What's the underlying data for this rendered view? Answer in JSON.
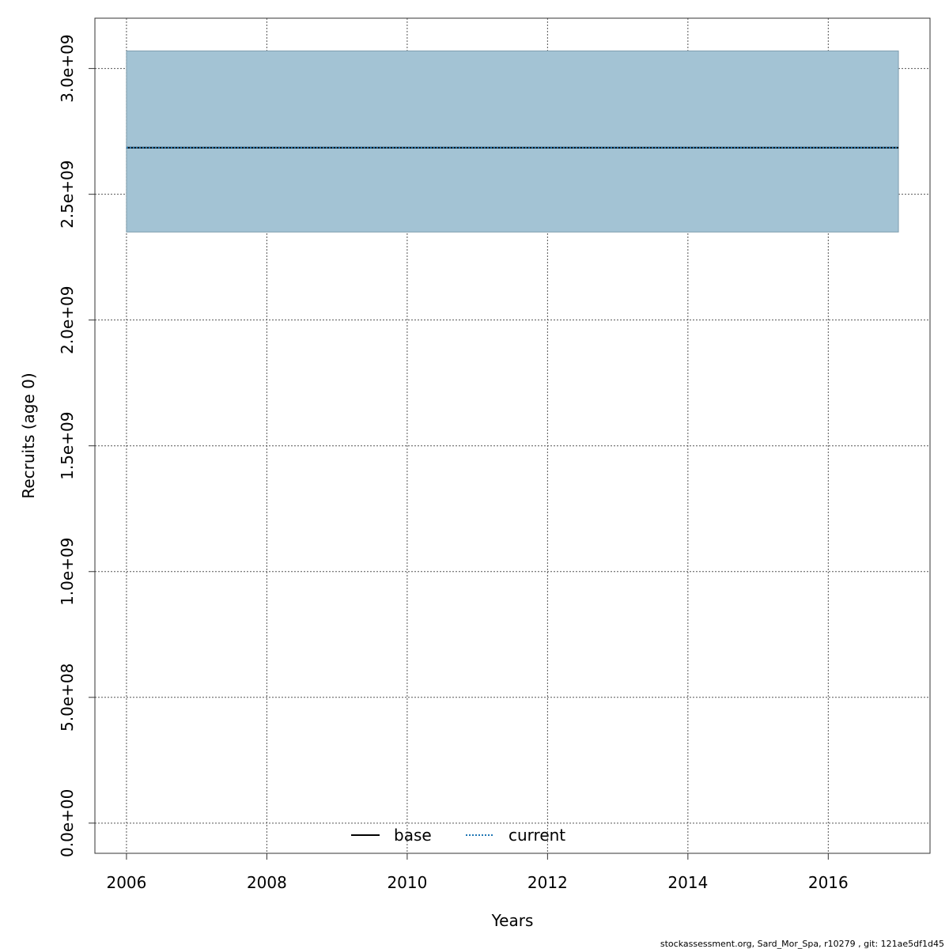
{
  "chart_data": {
    "type": "line",
    "xlabel": "Years",
    "ylabel": "Recruits (age 0)",
    "xlim": [
      2005.55,
      2017.45
    ],
    "ylim": [
      -120000000.0,
      3200000000.0
    ],
    "x_ticks": [
      2006,
      2008,
      2010,
      2012,
      2014,
      2016
    ],
    "x_tick_labels": [
      "2006",
      "2008",
      "2010",
      "2012",
      "2014",
      "2016"
    ],
    "y_ticks": [
      0,
      500000000,
      1000000000,
      1500000000,
      2000000000,
      2500000000,
      3000000000
    ],
    "y_tick_labels": [
      "0.0e+00",
      "5.0e+08",
      "1.0e+09",
      "1.5e+09",
      "2.0e+09",
      "2.5e+09",
      "3.0e+09"
    ],
    "grid": true,
    "x": [
      2006,
      2007,
      2008,
      2009,
      2010,
      2011,
      2012,
      2013,
      2014,
      2015,
      2016,
      2017
    ],
    "series": [
      {
        "name": "base",
        "line_style": "solid",
        "color": "#000000",
        "values": [
          2685000000.0,
          2685000000.0,
          2685000000.0,
          2685000000.0,
          2685000000.0,
          2685000000.0,
          2685000000.0,
          2685000000.0,
          2685000000.0,
          2685000000.0,
          2685000000.0,
          2685000000.0
        ]
      },
      {
        "name": "current",
        "line_style": "dotted",
        "color": "#1f77b4",
        "values": [
          2685000000.0,
          2685000000.0,
          2685000000.0,
          2685000000.0,
          2685000000.0,
          2685000000.0,
          2685000000.0,
          2685000000.0,
          2685000000.0,
          2685000000.0,
          2685000000.0,
          2685000000.0
        ],
        "ci_lower": [
          2350000000.0,
          2350000000.0,
          2350000000.0,
          2350000000.0,
          2350000000.0,
          2350000000.0,
          2350000000.0,
          2350000000.0,
          2350000000.0,
          2350000000.0,
          2350000000.0,
          2350000000.0
        ],
        "ci_upper": [
          3070000000.0,
          3070000000.0,
          3070000000.0,
          3070000000.0,
          3070000000.0,
          3070000000.0,
          3070000000.0,
          3070000000.0,
          3070000000.0,
          3070000000.0,
          3070000000.0,
          3070000000.0
        ]
      }
    ],
    "band_color": "#a3c3d4",
    "legend": {
      "position": "bottom-center",
      "entries": [
        "base",
        "current"
      ]
    }
  },
  "footer": "stockassessment.org, Sard_Mor_Spa, r10279 , git: 121ae5df1d45"
}
